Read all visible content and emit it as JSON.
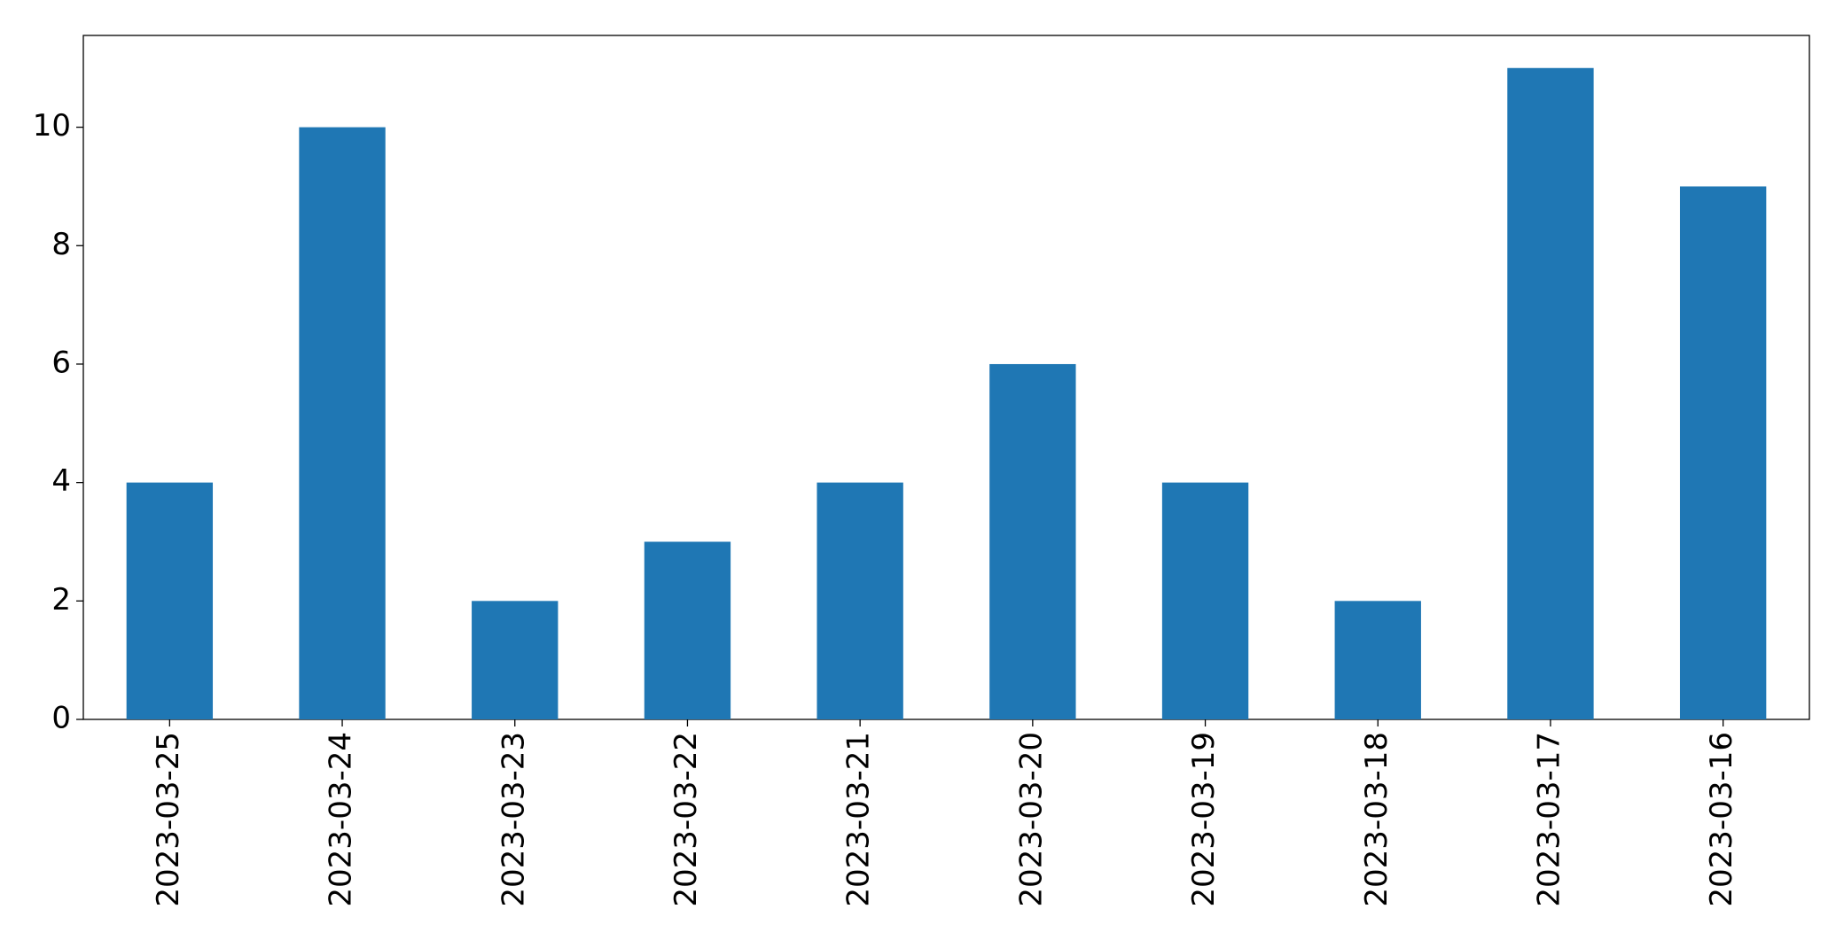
{
  "chart_data": {
    "type": "bar",
    "categories": [
      "2023-03-25",
      "2023-03-24",
      "2023-03-23",
      "2023-03-22",
      "2023-03-21",
      "2023-03-20",
      "2023-03-19",
      "2023-03-18",
      "2023-03-17",
      "2023-03-16"
    ],
    "values": [
      4,
      10,
      2,
      3,
      4,
      6,
      4,
      2,
      11,
      9
    ],
    "color": "#1f77b4",
    "ylim": [
      0,
      11.55
    ],
    "yticks": [
      0,
      2,
      4,
      6,
      8,
      10
    ],
    "grid": false
  }
}
